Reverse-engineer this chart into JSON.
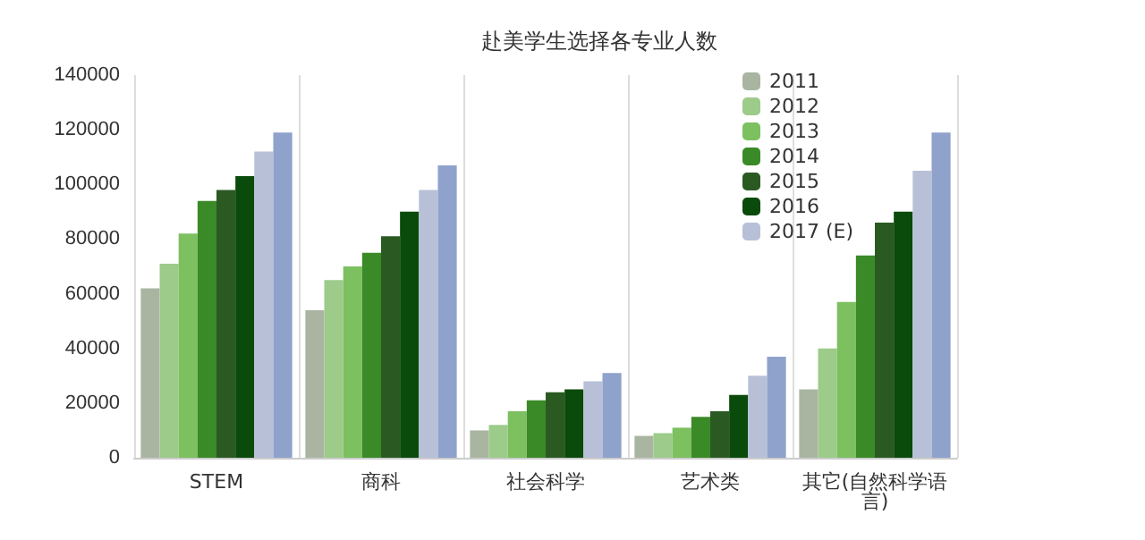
{
  "chart_data": {
    "type": "bar",
    "title": "赴美学生选择各专业人数",
    "categories": [
      "STEM",
      "商科",
      "社会科学",
      "艺术类",
      "其它(自然科学语言)"
    ],
    "series": [
      {
        "name": "2011",
        "color": "#a9b5a1",
        "values": [
          62000,
          54000,
          10000,
          8000,
          25000
        ]
      },
      {
        "name": "2012",
        "color": "#9ccb8a",
        "values": [
          71000,
          65000,
          12000,
          9000,
          40000
        ]
      },
      {
        "name": "2013",
        "color": "#7cc060",
        "values": [
          82000,
          70000,
          17000,
          11000,
          57000
        ]
      },
      {
        "name": "2014",
        "color": "#3a8a28",
        "values": [
          94000,
          75000,
          21000,
          15000,
          74000
        ]
      },
      {
        "name": "2015",
        "color": "#2a5a22",
        "values": [
          98000,
          81000,
          24000,
          17000,
          86000
        ]
      },
      {
        "name": "2016",
        "color": "#0a4a0a",
        "values": [
          103000,
          90000,
          25000,
          23000,
          90000
        ]
      },
      {
        "name": "2017 (E)",
        "color": "#b8c0d8",
        "values": [
          112000,
          98000,
          28000,
          30000,
          105000
        ]
      },
      {
        "color": "#8ea2cc",
        "values": [
          119000,
          107000,
          31000,
          37000,
          119000
        ]
      }
    ],
    "ylim": [
      0,
      140000
    ],
    "yticks": [
      0,
      20000,
      40000,
      60000,
      80000,
      100000,
      120000,
      140000
    ],
    "grid": "x",
    "legend": "top"
  }
}
